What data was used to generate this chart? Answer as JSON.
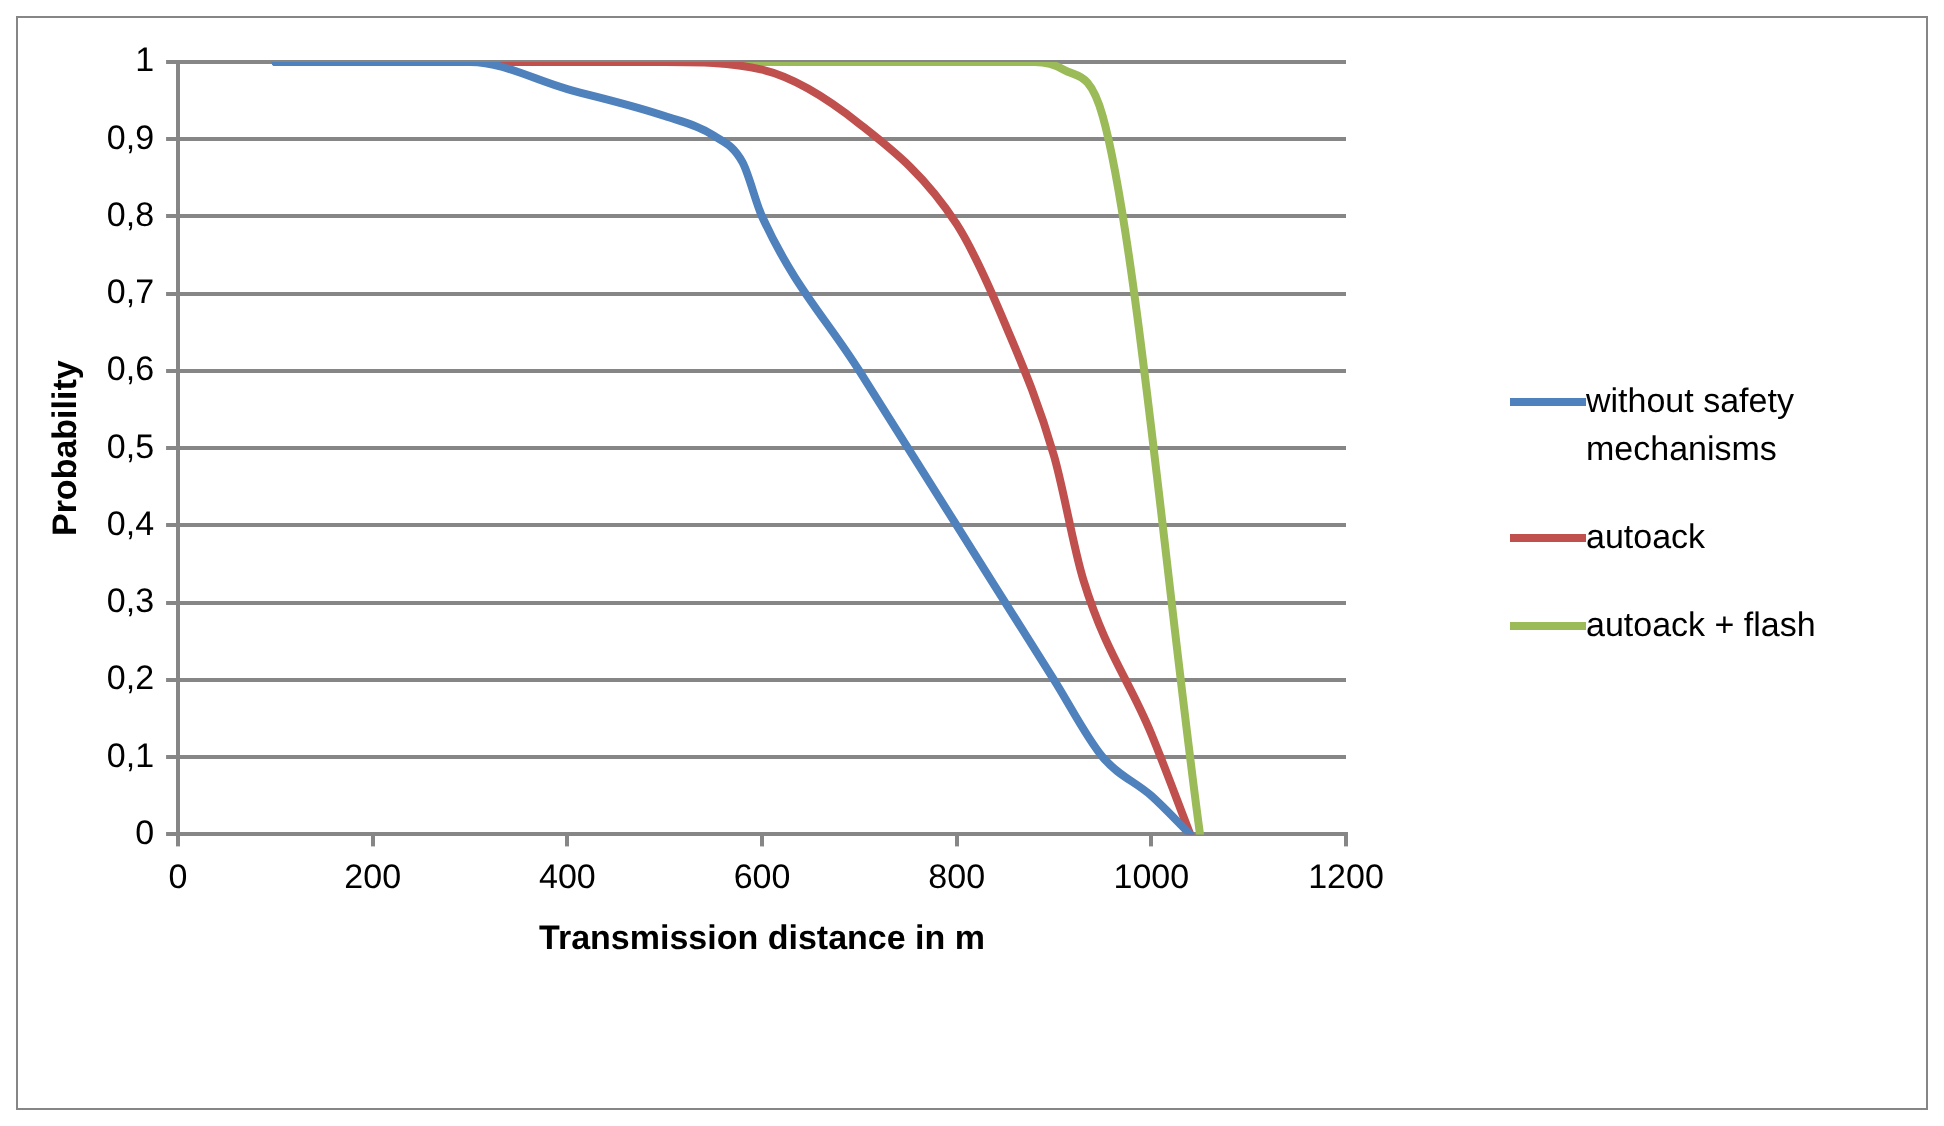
{
  "chart_data": {
    "type": "line",
    "xlabel": "Transmission distance in m",
    "ylabel": "Probability",
    "xlim": [
      0,
      1200
    ],
    "xticks": [
      0,
      200,
      400,
      600,
      800,
      1000,
      1200
    ],
    "ylim": [
      0,
      1
    ],
    "yticks": [
      0,
      {
        "value": 0.1,
        "label": "0,1"
      },
      {
        "value": 0.2,
        "label": "0,2"
      },
      {
        "value": 0.3,
        "label": "0,3"
      },
      {
        "value": 0.4,
        "label": "0,4"
      },
      {
        "value": 0.5,
        "label": "0,5"
      },
      {
        "value": 0.6,
        "label": "0,6"
      },
      {
        "value": 0.7,
        "label": "0,7"
      },
      {
        "value": 0.8,
        "label": "0,8"
      },
      {
        "value": 0.9,
        "label": "0,9"
      },
      1
    ],
    "grid": "y",
    "legend": "right",
    "marker": "none",
    "line_style": "solid",
    "series": [
      {
        "name": "without safety mechanisms",
        "color": "#4f81bd",
        "x": [
          100,
          200,
          300,
          400,
          500,
          550,
          580,
          600,
          700,
          800,
          900,
          950,
          1000,
          1040
        ],
        "values": [
          1,
          1,
          1,
          0.965,
          0.93,
          0.905,
          0.87,
          0.8,
          0.6,
          0.4,
          0.2,
          0.1,
          0.05,
          0
        ]
      },
      {
        "name": "autoack",
        "color": "#c0504d",
        "x": [
          100,
          300,
          500,
          600,
          700,
          800,
          850,
          900,
          930,
          1000,
          1040
        ],
        "values": [
          1,
          1,
          1,
          0.99,
          0.92,
          0.79,
          0.66,
          0.49,
          0.33,
          0.13,
          0
        ]
      },
      {
        "name": "autoack + flash",
        "color": "#9bbb59",
        "x": [
          100,
          300,
          500,
          700,
          880,
          910,
          950,
          1050
        ],
        "values": [
          1,
          1,
          1,
          1,
          1,
          0.99,
          0.93,
          0
        ]
      }
    ]
  }
}
